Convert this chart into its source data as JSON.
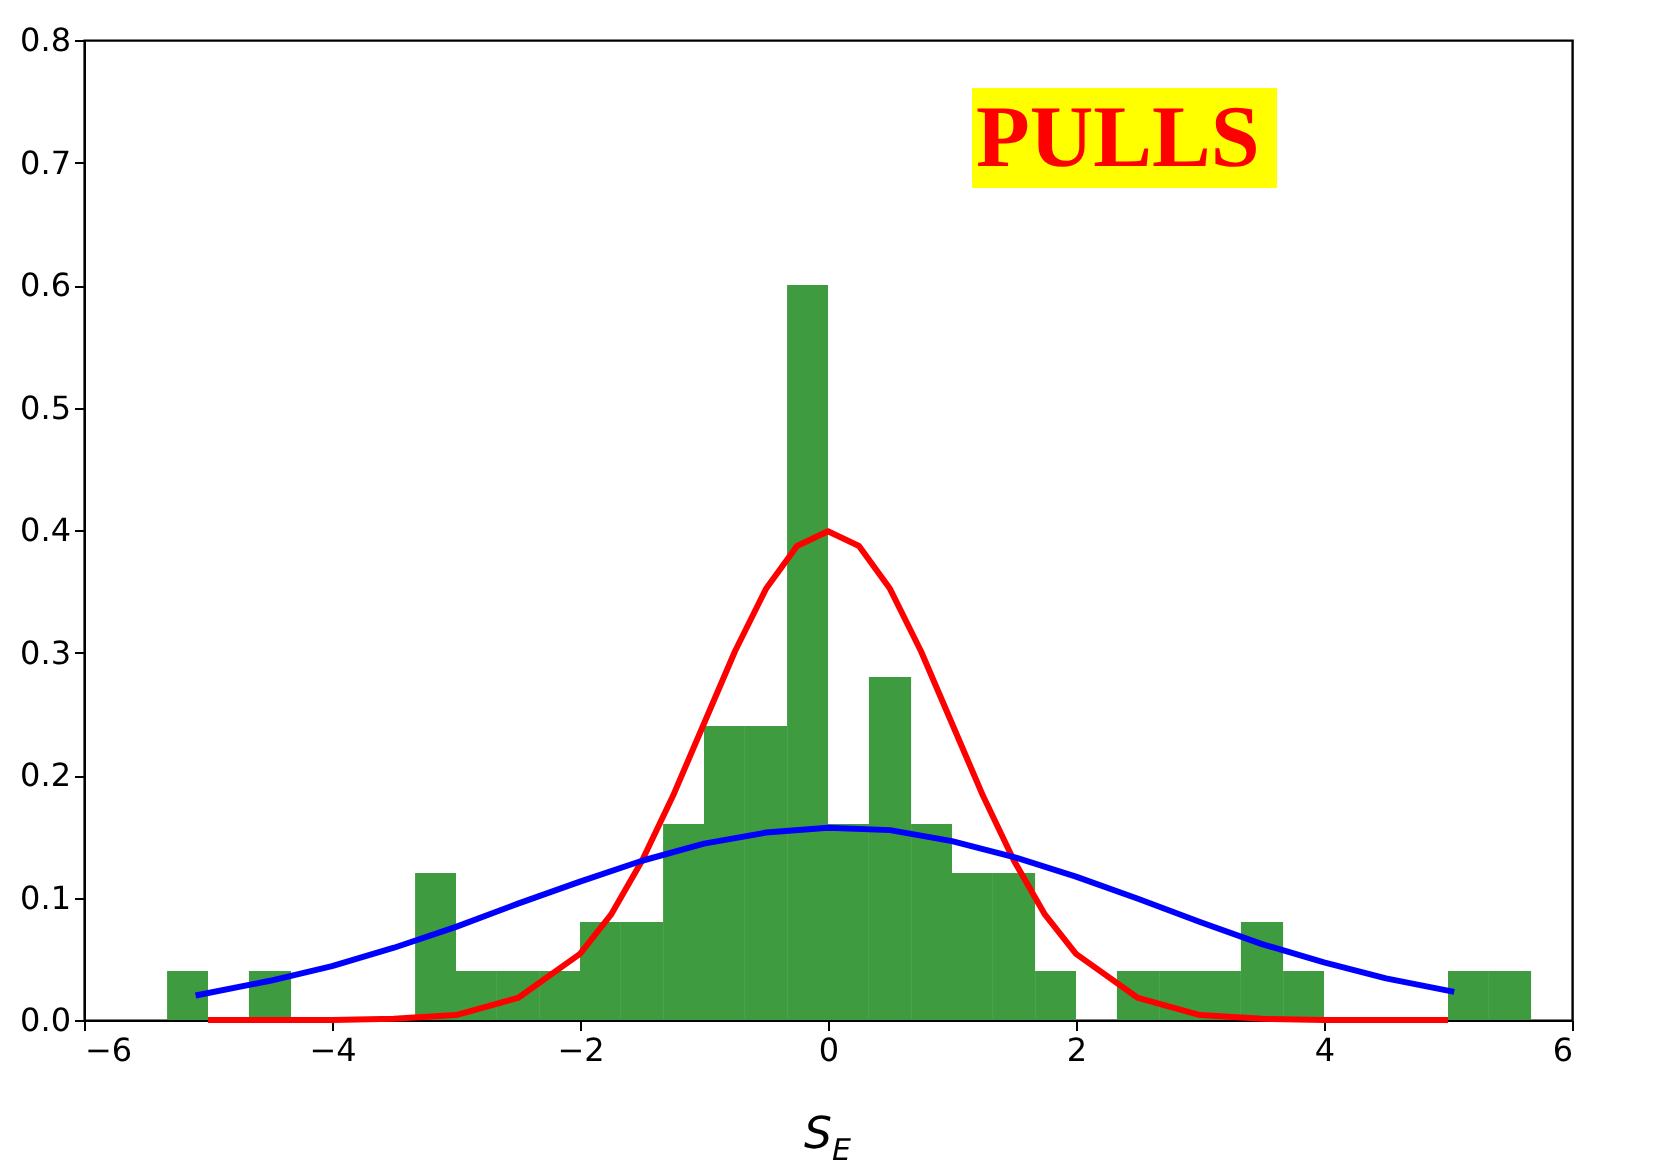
{
  "chart_data": {
    "type": "histogram",
    "xlabel": "S$_{E}$",
    "annotations": [
      "PULLS"
    ],
    "bins": [
      -5.33,
      -5.0,
      -4.67,
      -4.33,
      -3.33,
      -3.0,
      -2.67,
      -2.33,
      -2.0,
      -1.67,
      -1.33,
      -1.0,
      -0.67,
      -0.33,
      0.0,
      0.33,
      0.67,
      1.0,
      1.33,
      1.67,
      2.0,
      2.33,
      2.67,
      3.0,
      3.33,
      3.67,
      4.0,
      5.0,
      5.33,
      5.67
    ],
    "values": [
      0.04,
      0,
      0.04,
      0,
      0.12,
      0.04,
      0.04,
      0.04,
      0.08,
      0.08,
      0.16,
      0.24,
      0.24,
      0.6,
      0.16,
      0.28,
      0.16,
      0.12,
      0.12,
      0.04,
      0,
      0.04,
      0.04,
      0.04,
      0.08,
      0.04,
      0,
      0.04,
      0.04
    ],
    "color": "#3f9b3f",
    "series": [
      {
        "type": "line",
        "color": "#ff0000",
        "x": [
          -5,
          -4,
          -3.5,
          -3,
          -2.5,
          -2,
          -1.75,
          -1.5,
          -1.25,
          -1,
          -0.75,
          -0.5,
          -0.25,
          0,
          0.25,
          0.5,
          0.75,
          1,
          1.25,
          1.5,
          1.75,
          2,
          2.5,
          3,
          3.5,
          4,
          5
        ],
        "values": [
          0,
          0,
          0.001,
          0.004,
          0.018,
          0.054,
          0.086,
          0.13,
          0.183,
          0.242,
          0.301,
          0.352,
          0.387,
          0.399,
          0.387,
          0.352,
          0.301,
          0.242,
          0.183,
          0.13,
          0.086,
          0.054,
          0.018,
          0.004,
          0.001,
          0,
          0
        ]
      },
      {
        "type": "line",
        "color": "#0000ff",
        "x": [
          -5.1,
          -4.5,
          -4,
          -3.5,
          -3,
          -2.5,
          -2,
          -1.5,
          -1,
          -0.5,
          0,
          0.5,
          1,
          1.5,
          2,
          2.5,
          3,
          3.5,
          4,
          4.5,
          5.05
        ],
        "values": [
          0.02,
          0.032,
          0.044,
          0.059,
          0.076,
          0.095,
          0.113,
          0.13,
          0.144,
          0.153,
          0.157,
          0.155,
          0.146,
          0.133,
          0.117,
          0.099,
          0.08,
          0.062,
          0.047,
          0.034,
          0.023
        ]
      }
    ],
    "xlim": [
      -6,
      6
    ],
    "ylim": [
      0,
      0.8
    ],
    "xticks": [
      {
        "value": -6,
        "label": "−6"
      },
      {
        "value": -4,
        "label": "−4"
      },
      {
        "value": -2,
        "label": "−2"
      },
      0,
      2,
      4,
      6
    ],
    "yticks": [
      {
        "value": 0,
        "label": "0.0"
      },
      {
        "value": 0.1,
        "label": "0.1"
      },
      {
        "value": 0.2,
        "label": "0.2"
      },
      {
        "value": 0.3,
        "label": "0.3"
      },
      {
        "value": 0.4,
        "label": "0.4"
      },
      {
        "value": 0.5,
        "label": "0.5"
      },
      {
        "value": 0.6,
        "label": "0.6"
      },
      {
        "value": 0.7,
        "label": "0.7"
      },
      {
        "value": 0.8,
        "label": "0.8"
      }
    ],
    "grid": false,
    "line_style": "solid",
    "marker": "none"
  }
}
